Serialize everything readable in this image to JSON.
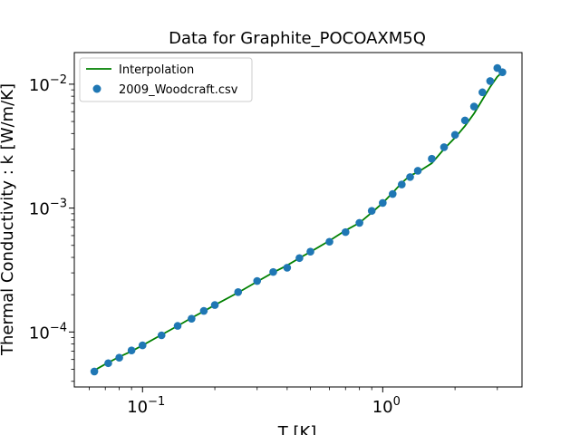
{
  "chart_data": {
    "type": "scatter",
    "title": "Data for Graphite_POCOAXM5Q",
    "xlabel": "T [K]",
    "ylabel": "Thermal Conductivity : k [W/m/K]",
    "xscale": "log",
    "yscale": "log",
    "xlim": [
      0.052,
      3.8
    ],
    "ylim": [
      3.6e-05,
      0.018
    ],
    "xticks": [
      {
        "value": 0.1,
        "base": "10",
        "exp": "−1"
      },
      {
        "value": 1,
        "base": "10",
        "exp": "0"
      }
    ],
    "yticks": [
      {
        "value": 0.0001,
        "base": "10",
        "exp": "−4"
      },
      {
        "value": 0.001,
        "base": "10",
        "exp": "−3"
      },
      {
        "value": 0.01,
        "base": "10",
        "exp": "−2"
      }
    ],
    "grid": false,
    "legend": {
      "placement": "top-left",
      "entries": [
        "Interpolation",
        "2009_Woodcraft.csv"
      ]
    },
    "series": [
      {
        "name": "Interpolation",
        "kind": "line",
        "color": "#008000",
        "x": [
          0.063,
          0.07,
          0.08,
          0.09,
          0.1,
          0.12,
          0.14,
          0.16,
          0.18,
          0.2,
          0.25,
          0.3,
          0.35,
          0.4,
          0.45,
          0.5,
          0.6,
          0.7,
          0.8,
          0.9,
          1.0,
          1.1,
          1.2,
          1.3,
          1.4,
          1.6,
          1.8,
          2.0,
          2.2,
          2.4,
          2.6,
          2.8,
          3.0,
          3.15
        ],
        "y": [
          4.9e-05,
          5.5e-05,
          6.3e-05,
          7e-05,
          7.8e-05,
          9.5e-05,
          0.000112,
          0.00013,
          0.000147,
          0.000165,
          0.000208,
          0.000255,
          0.000302,
          0.000345,
          0.000395,
          0.000443,
          0.000545,
          0.00066,
          0.00076,
          0.00092,
          0.0011,
          0.00133,
          0.0016,
          0.00183,
          0.00195,
          0.0023,
          0.003,
          0.0037,
          0.0046,
          0.0058,
          0.0075,
          0.0095,
          0.0115,
          0.0125
        ]
      },
      {
        "name": "2009_Woodcraft.csv",
        "kind": "scatter",
        "color": "#1f77b4",
        "x": [
          0.063,
          0.072,
          0.08,
          0.09,
          0.1,
          0.12,
          0.14,
          0.16,
          0.18,
          0.2,
          0.25,
          0.3,
          0.35,
          0.4,
          0.45,
          0.5,
          0.6,
          0.7,
          0.8,
          0.9,
          1.0,
          1.1,
          1.2,
          1.3,
          1.4,
          1.6,
          1.8,
          2.0,
          2.2,
          2.4,
          2.6,
          2.8,
          3.0,
          3.15
        ],
        "y": [
          4.8e-05,
          5.6e-05,
          6.2e-05,
          7.1e-05,
          7.8e-05,
          9.4e-05,
          0.000112,
          0.000128,
          0.000148,
          0.000165,
          0.00021,
          0.000258,
          0.000305,
          0.00033,
          0.000395,
          0.000445,
          0.000535,
          0.00064,
          0.00076,
          0.00095,
          0.0011,
          0.0013,
          0.00155,
          0.00178,
          0.002,
          0.0025,
          0.0031,
          0.0039,
          0.0051,
          0.0066,
          0.0086,
          0.0106,
          0.0135,
          0.0125
        ]
      }
    ]
  }
}
